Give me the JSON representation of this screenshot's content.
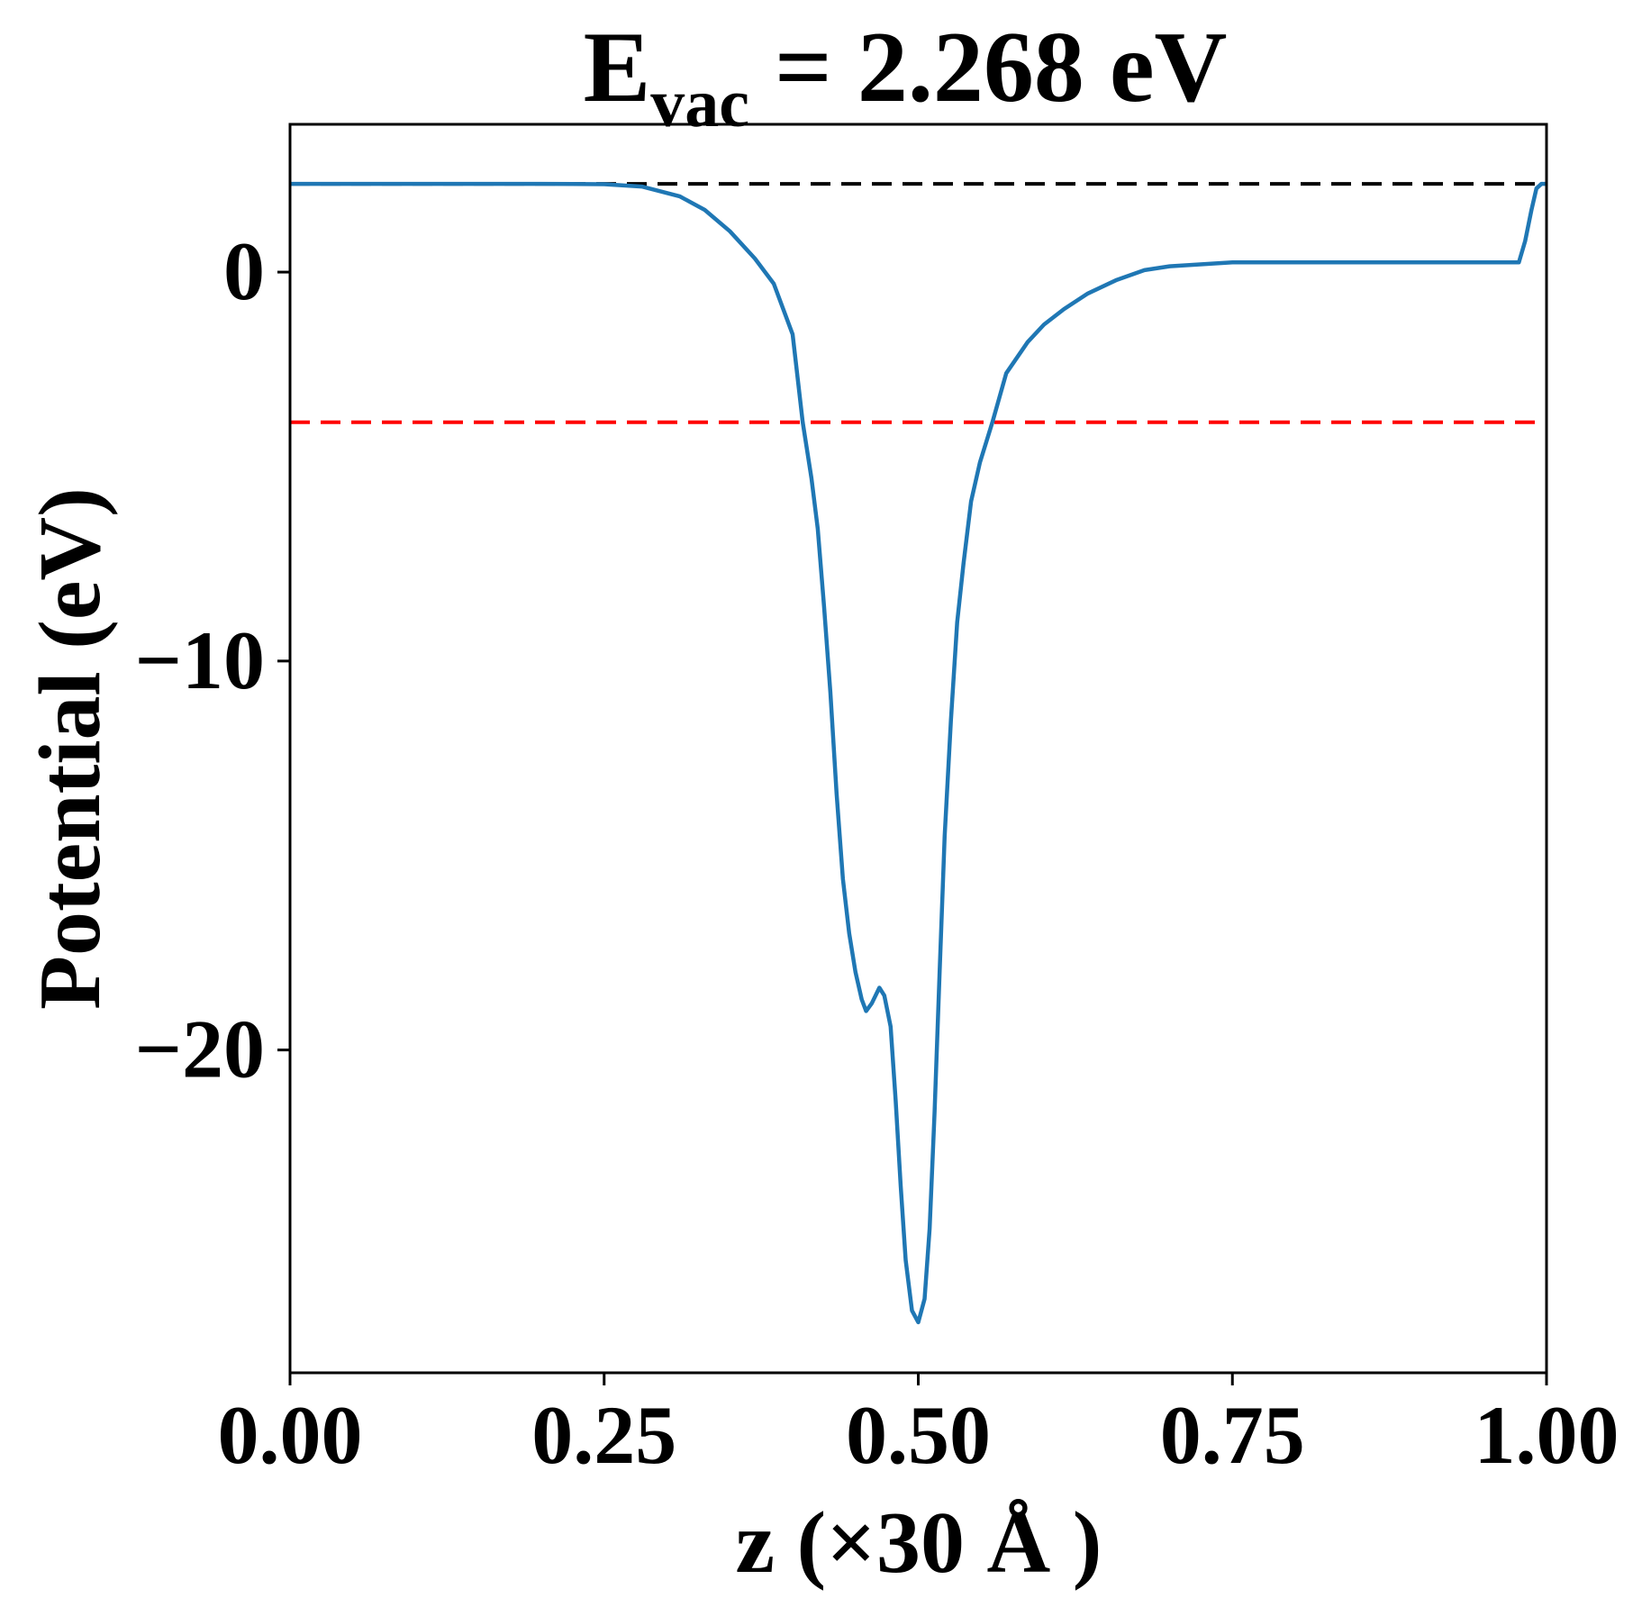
{
  "chart_data": {
    "type": "line",
    "title": {
      "main": "E",
      "sub": "vac",
      "rest": " = 2.268 eV"
    },
    "xlabel": "z (×30 Å )",
    "ylabel": "Potential (eV)",
    "xlim": [
      0,
      1
    ],
    "ylim": [
      -28.3,
      3.8
    ],
    "xticks": [
      0,
      0.25,
      0.5,
      0.75,
      1.0
    ],
    "xtick_labels": [
      "0.00",
      "0.25",
      "0.50",
      "0.75",
      "1.00"
    ],
    "yticks": [
      0,
      -10,
      -20
    ],
    "ytick_labels": [
      "0",
      "−10",
      "−20"
    ],
    "grid": false,
    "hlines": [
      {
        "name": "vacuum-level",
        "y": 2.268,
        "color": "#000000",
        "style": "dashed"
      },
      {
        "name": "fermi-level",
        "y": -3.86,
        "color": "#ff0000",
        "style": "dashed"
      }
    ],
    "series": [
      {
        "name": "planar-averaged-potential",
        "color": "#1f77b4",
        "x": [
          0,
          0.05,
          0.1,
          0.15,
          0.2,
          0.25,
          0.28,
          0.31,
          0.33,
          0.35,
          0.37,
          0.385,
          0.4,
          0.408,
          0.415,
          0.42,
          0.425,
          0.43,
          0.435,
          0.44,
          0.445,
          0.45,
          0.455,
          0.4585,
          0.463,
          0.469,
          0.473,
          0.478,
          0.482,
          0.486,
          0.49,
          0.495,
          0.5,
          0.505,
          0.509,
          0.513,
          0.517,
          0.521,
          0.526,
          0.531,
          0.536,
          0.542,
          0.549,
          0.559,
          0.57,
          0.587,
          0.6,
          0.616,
          0.635,
          0.658,
          0.68,
          0.7,
          0.75,
          0.8,
          0.85,
          0.9,
          0.95,
          0.978,
          0.983,
          0.988,
          0.992,
          0.996,
          1.0
        ],
        "y": [
          2.27,
          2.27,
          2.27,
          2.27,
          2.27,
          2.26,
          2.2,
          1.95,
          1.6,
          1.05,
          0.35,
          -0.3,
          -1.6,
          -3.86,
          -5.3,
          -6.6,
          -8.6,
          -10.8,
          -13.4,
          -15.6,
          -17.0,
          -18.0,
          -18.7,
          -19.0,
          -18.8,
          -18.4,
          -18.6,
          -19.4,
          -21.3,
          -23.5,
          -25.4,
          -26.7,
          -27.0,
          -26.4,
          -24.6,
          -21.6,
          -18.0,
          -14.5,
          -11.5,
          -9.0,
          -7.5,
          -5.9,
          -4.9,
          -3.86,
          -2.6,
          -1.8,
          -1.35,
          -0.95,
          -0.55,
          -0.2,
          0.05,
          0.15,
          0.25,
          0.25,
          0.25,
          0.25,
          0.25,
          0.25,
          0.8,
          1.6,
          2.15,
          2.27,
          2.27
        ]
      }
    ]
  }
}
